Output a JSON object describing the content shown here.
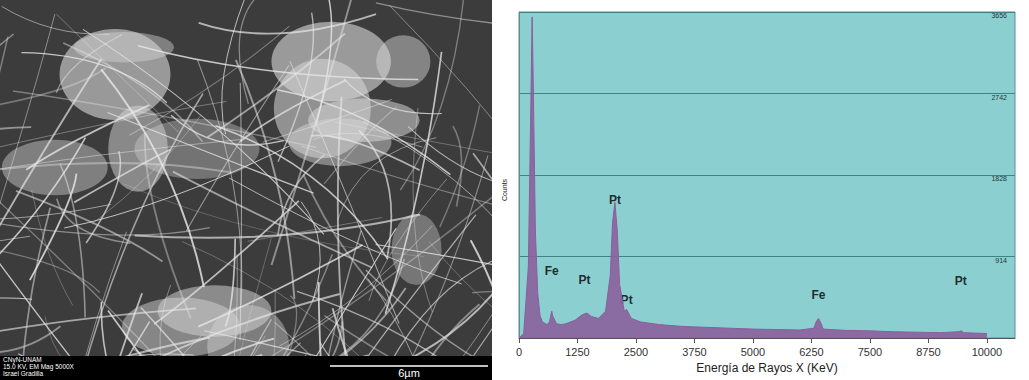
{
  "micrograph": {
    "caption_lines": [
      "CNyN-UNAM",
      "15.0 KV, EM Mag 5000X",
      "Israel Gradilla"
    ],
    "scale_bar": "6µm"
  },
  "chart_data": {
    "type": "line",
    "x_label": "Energía de Rayos X (KeV)",
    "y_label": "Counts",
    "x": [
      0,
      100,
      200,
      250,
      280,
      300,
      350,
      400,
      450,
      500,
      600,
      650,
      700,
      720,
      800,
      900,
      1000,
      1200,
      1350,
      1450,
      1550,
      1700,
      1850,
      1950,
      2000,
      2050,
      2100,
      2150,
      2250,
      2300,
      2400,
      2600,
      3000,
      3500,
      4000,
      4500,
      5000,
      5500,
      6000,
      6300,
      6350,
      6400,
      6450,
      6500,
      7000,
      7500,
      8000,
      8500,
      9000,
      9400,
      9450,
      9500,
      10000
    ],
    "values": [
      0,
      50,
      800,
      2500,
      3600,
      3000,
      1200,
      500,
      250,
      180,
      150,
      180,
      300,
      250,
      160,
      150,
      160,
      200,
      260,
      280,
      240,
      220,
      300,
      700,
      1300,
      1520,
      1200,
      600,
      300,
      320,
      220,
      180,
      150,
      130,
      120,
      110,
      100,
      95,
      90,
      110,
      180,
      220,
      170,
      100,
      85,
      80,
      70,
      65,
      60,
      70,
      80,
      60,
      50
    ],
    "color": "#8a5f9c",
    "xlim": [
      0,
      10600
    ],
    "xticks": [
      0,
      1250,
      2500,
      3750,
      5000,
      6250,
      7500,
      8750,
      10000
    ],
    "ylim": [
      0,
      3656
    ],
    "yticks": [
      914,
      1828,
      2742,
      3656
    ],
    "grid": true,
    "annotations": [
      {
        "text": "Fe",
        "x": 700,
        "y": 750
      },
      {
        "text": "Pt",
        "x": 1400,
        "y": 650
      },
      {
        "text": "Pt",
        "x": 2050,
        "y": 1550
      },
      {
        "text": "Pt",
        "x": 2300,
        "y": 430
      },
      {
        "text": "Fe",
        "x": 6400,
        "y": 480
      },
      {
        "text": "Pt",
        "x": 9440,
        "y": 640
      }
    ]
  }
}
